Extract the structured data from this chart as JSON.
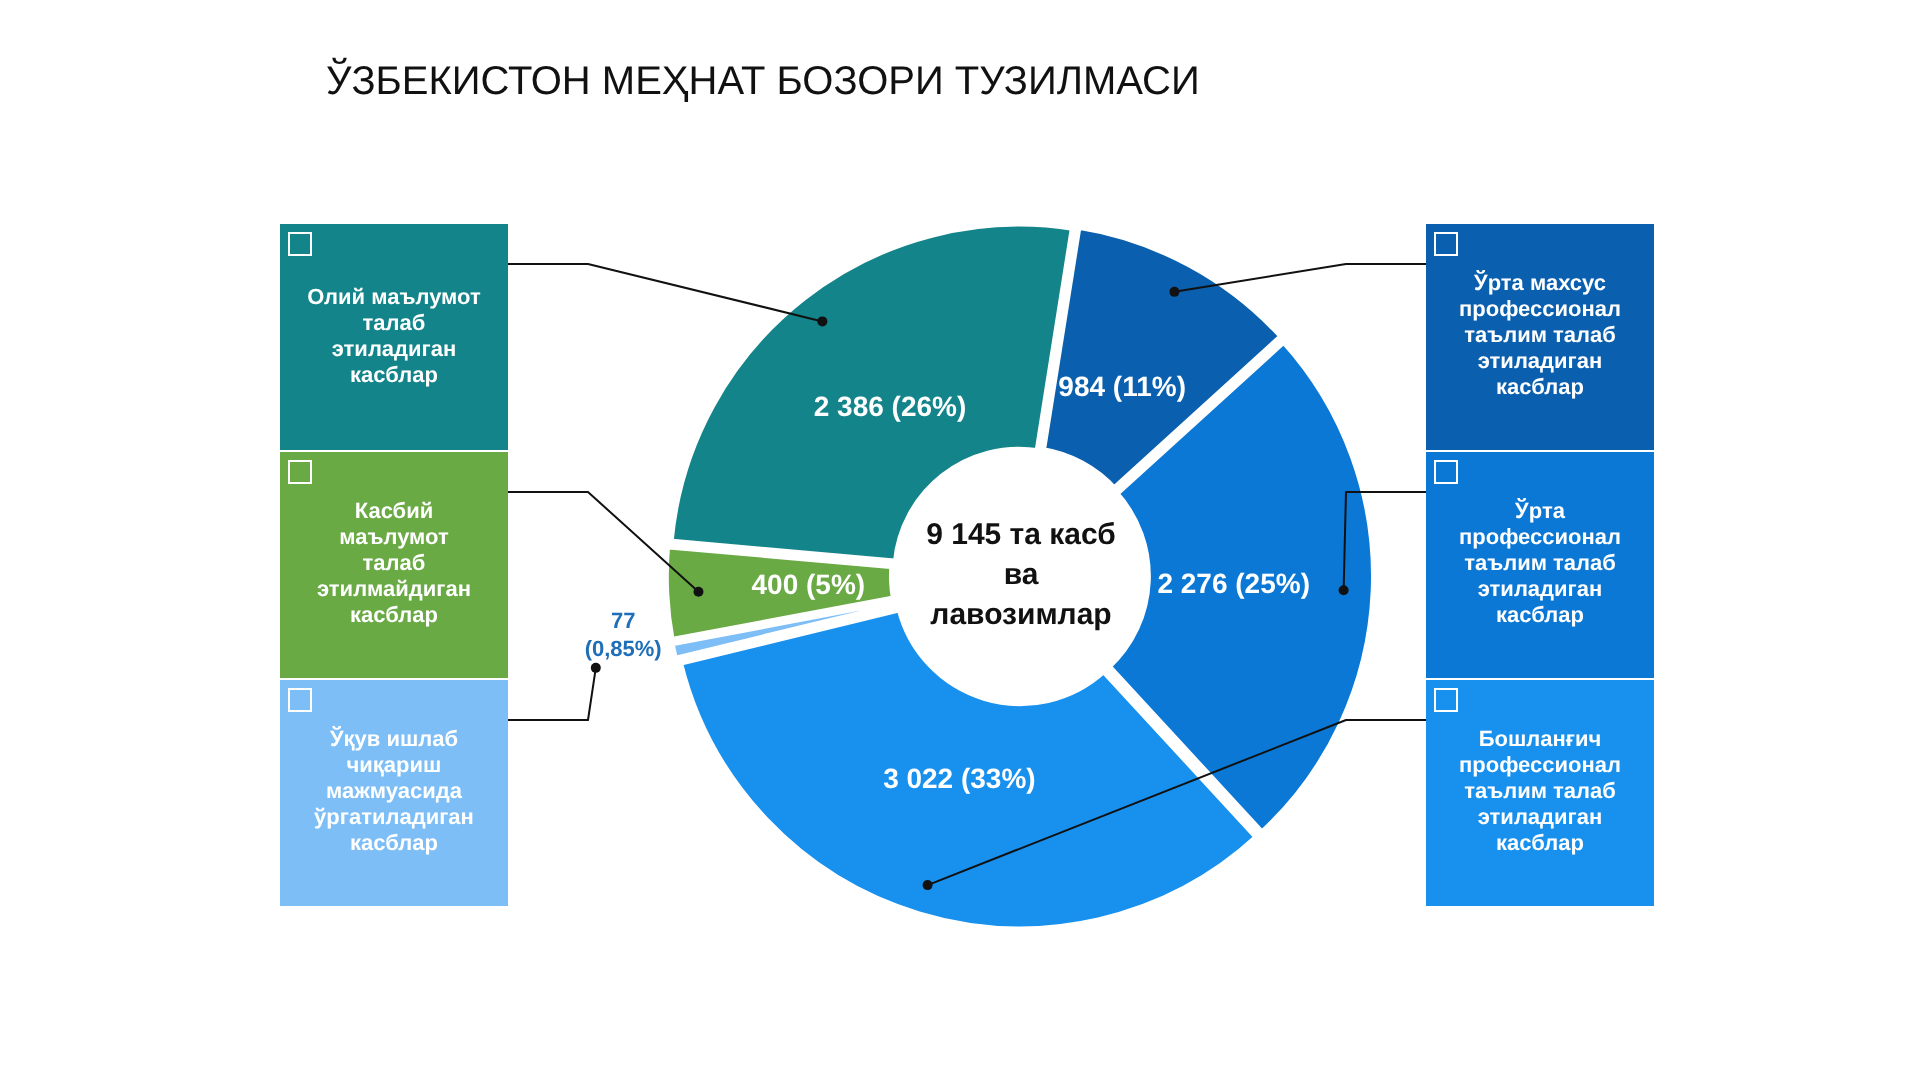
{
  "chart_data": {
    "type": "donut",
    "title": "ЎЗБЕКИСТОН МЕҲНАТ БОЗОРИ ТУЗИЛМАСИ",
    "categories": [
      "Ўрта махсус профессионал таълим талаб этиладиган касблар",
      "Ўрта профессионал таълим талаб этиладиган касблар",
      "Бошланғич профессионал таълим талаб этиладиган касблар",
      "Ўқув ишлаб чиқариш мажмуасида ўргатиладиган касблар",
      "Касбий маълумот талаб этилмайдиган касблар",
      "Олий маълумот талаб этиладиган касблар"
    ],
    "values": [
      984,
      2276,
      3022,
      77,
      400,
      2386
    ],
    "value_labels": [
      "984 (11%)",
      "2 276 (25%)",
      "3 022 (33%)",
      "77 (0,85%)",
      "400 (5%)",
      "2 386 (26%)"
    ],
    "colors": [
      "#0a5fae",
      "#0b78d6",
      "#1890ee",
      "#7dbef6",
      "#6aaa45",
      "#13848a"
    ],
    "annotations": [
      "9 145 та касб ва лавозимлар"
    ],
    "legend": "left"
  }
}
